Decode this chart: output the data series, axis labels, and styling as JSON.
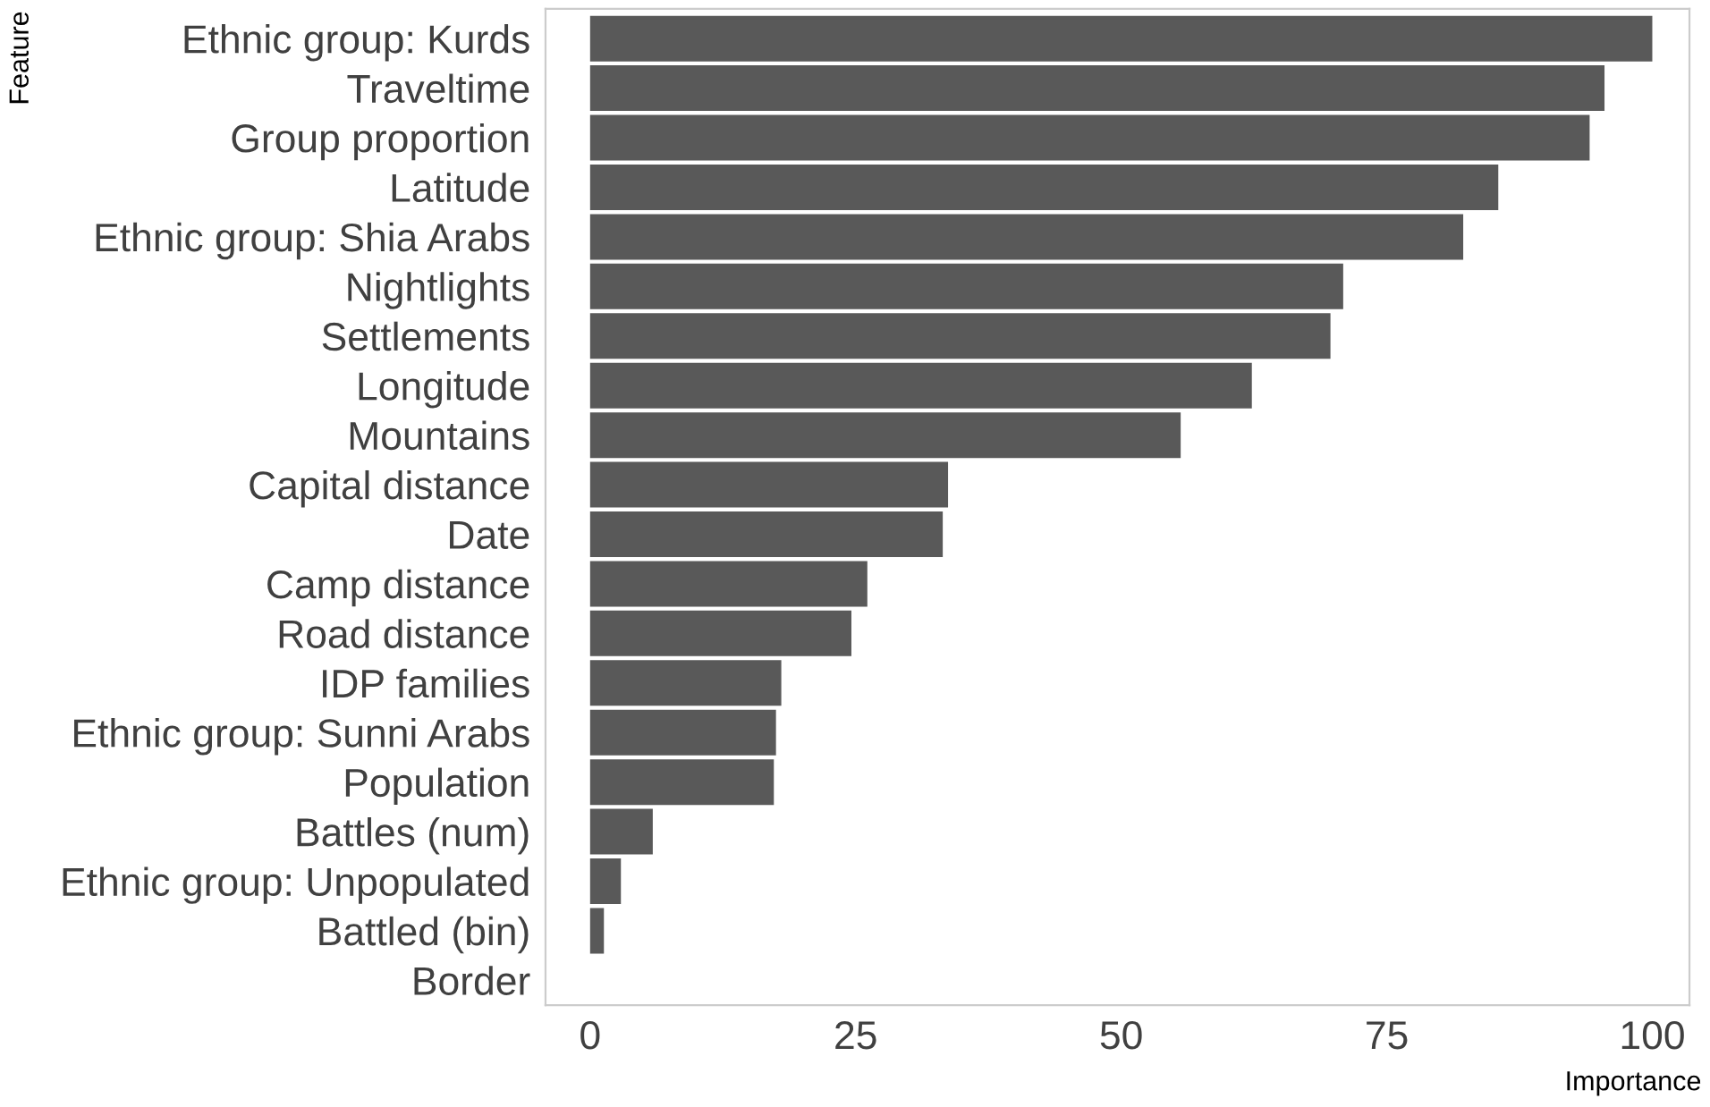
{
  "chart_data": {
    "type": "bar",
    "orientation": "horizontal",
    "xlabel": "Importance",
    "ylabel": "Feature",
    "categories": [
      "Ethnic group: Kurds",
      "Traveltime",
      "Group proportion",
      "Latitude",
      "Ethnic group: Shia Arabs",
      "Nightlights",
      "Settlements",
      "Longitude",
      "Mountains",
      "Capital distance",
      "Date",
      "Camp distance",
      "Road distance",
      "IDP families",
      "Ethnic group: Sunni Arabs",
      "Population",
      "Battles (num)",
      "Ethnic group: Unpopulated",
      "Battled (bin)",
      "Border"
    ],
    "values": [
      100,
      95.5,
      94.1,
      85.5,
      82.2,
      70.9,
      69.7,
      62.3,
      55.6,
      33.7,
      33.2,
      26.1,
      24.6,
      18.0,
      17.5,
      17.3,
      5.9,
      2.9,
      1.3,
      0
    ],
    "color": "#595959",
    "xlim": [
      -4.2,
      103.5
    ],
    "xticks": [
      0,
      25,
      50,
      75,
      100
    ],
    "grid": false
  }
}
